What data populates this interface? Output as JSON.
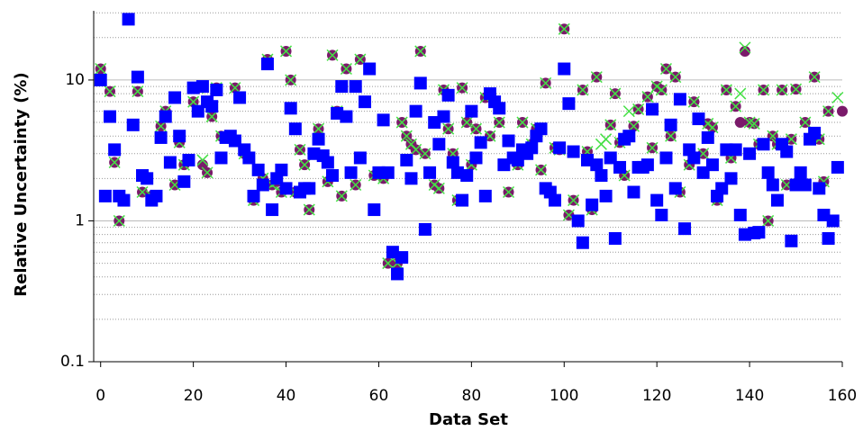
{
  "chart_data": {
    "type": "scatter",
    "x_label": "Data Set",
    "y_label": "Relative Uncertainty (%)",
    "xlim": [
      -1.5,
      160
    ],
    "xticks": [
      0,
      20,
      40,
      60,
      80,
      100,
      120,
      140,
      160
    ],
    "ylim": [
      0.1,
      31
    ],
    "yticks": [
      {
        "value": 0.1,
        "label": "0.1"
      },
      1,
      10
    ],
    "yticks_minor": [
      0.2,
      0.3,
      0.4,
      0.5,
      0.6,
      0.7,
      0.8,
      0.9,
      2,
      3,
      4,
      5,
      6,
      7,
      8,
      9,
      20,
      30
    ],
    "log_y": true,
    "grid": true,
    "x": [
      0,
      1,
      2,
      3,
      4,
      5,
      6,
      7,
      8,
      9,
      10,
      11,
      12,
      13,
      14,
      15,
      16,
      17,
      18,
      19,
      20,
      21,
      22,
      23,
      24,
      25,
      26,
      27,
      28,
      29,
      30,
      31,
      32,
      33,
      34,
      35,
      36,
      37,
      38,
      39,
      40,
      41,
      42,
      43,
      44,
      45,
      46,
      47,
      48,
      49,
      50,
      51,
      52,
      53,
      54,
      55,
      56,
      57,
      58,
      59,
      60,
      61,
      62,
      63,
      64,
      65,
      66,
      67,
      68,
      69,
      70,
      71,
      72,
      73,
      74,
      75,
      76,
      77,
      78,
      79,
      80,
      81,
      82,
      83,
      84,
      85,
      86,
      87,
      88,
      89,
      90,
      91,
      92,
      93,
      94,
      95,
      96,
      97,
      98,
      99,
      100,
      101,
      102,
      103,
      104,
      105,
      106,
      107,
      108,
      109,
      110,
      111,
      112,
      113,
      114,
      115,
      116,
      117,
      118,
      119,
      120,
      121,
      122,
      123,
      124,
      125,
      126,
      127,
      128,
      129,
      130,
      131,
      132,
      133,
      134,
      135,
      136,
      137,
      138,
      139,
      140,
      141,
      142,
      143,
      144,
      145,
      146,
      147,
      148,
      149,
      150,
      151,
      152,
      153,
      154,
      155,
      156,
      157,
      158,
      159,
      160
    ],
    "series": [
      {
        "marker": "x",
        "color": "#44e044",
        "values": [
          12,
          null,
          8.3,
          2.6,
          1,
          null,
          null,
          null,
          8.3,
          1.6,
          null,
          1.5,
          null,
          4.7,
          6,
          null,
          1.8,
          3.6,
          2.5,
          null,
          7,
          8.8,
          2.7,
          2.2,
          5.5,
          8.8,
          4,
          null,
          3.9,
          8.8,
          null,
          3,
          null,
          1.4,
          null,
          2,
          14,
          1.8,
          1.9,
          1.6,
          16,
          10,
          1.6,
          3.2,
          2.5,
          1.2,
          3,
          4.5,
          null,
          1.9,
          15,
          6,
          1.5,
          12,
          null,
          1.8,
          14,
          null,
          null,
          2.1,
          null,
          2,
          0.5,
          0.6,
          0.5,
          5,
          4,
          3.5,
          3.2,
          16,
          3,
          null,
          1.8,
          1.7,
          8.5,
          4.5,
          3,
          1.4,
          8.8,
          5,
          2.5,
          4.5,
          null,
          7.5,
          4,
          null,
          5,
          null,
          1.6,
          null,
          2.5,
          5,
          null,
          3.5,
          4.5,
          2.3,
          9.5,
          null,
          3.3,
          3.2,
          23,
          1.1,
          1.4,
          null,
          8.5,
          3.1,
          1.2,
          10.5,
          3.5,
          3.8,
          4.8,
          8,
          3.6,
          2.1,
          6,
          4.7,
          6.2,
          null,
          7.6,
          3.3,
          9,
          8.5,
          12,
          4,
          10.5,
          1.6,
          null,
          2.5,
          7,
          null,
          3,
          4.9,
          4.6,
          1.4,
          null,
          8.5,
          2.8,
          6.5,
          8,
          17,
          5,
          4.9,
          3.5,
          8.5,
          1,
          4,
          3.5,
          8.5,
          1.8,
          3.8,
          8.6,
          2,
          5,
          null,
          10.5,
          3.8,
          1.9,
          6,
          null,
          7.5,
          null
        ]
      },
      {
        "marker": "circle",
        "color": "#7a1a6a",
        "values": [
          12,
          null,
          8.3,
          2.6,
          1,
          null,
          null,
          null,
          8.3,
          1.6,
          null,
          1.5,
          null,
          4.7,
          6,
          null,
          1.8,
          3.6,
          2.5,
          null,
          7,
          8.8,
          2.5,
          2.2,
          5.5,
          8.8,
          4,
          null,
          3.9,
          8.8,
          null,
          3,
          null,
          1.4,
          null,
          2,
          14,
          1.8,
          1.9,
          1.6,
          16,
          10,
          1.6,
          3.2,
          2.5,
          1.2,
          3,
          4.5,
          null,
          1.9,
          15,
          6,
          1.5,
          12,
          null,
          1.8,
          14,
          null,
          null,
          2.1,
          null,
          2,
          0.5,
          0.6,
          0.5,
          5,
          4,
          3.5,
          3.2,
          16,
          3,
          null,
          1.8,
          1.7,
          8.5,
          4.5,
          3,
          1.4,
          8.8,
          5,
          2.5,
          4.5,
          null,
          7.5,
          4,
          null,
          5,
          null,
          1.6,
          null,
          2.5,
          5,
          null,
          3.5,
          4.5,
          2.3,
          9.5,
          null,
          3.3,
          3.2,
          23,
          1.1,
          1.4,
          null,
          8.5,
          3.1,
          1.2,
          10.5,
          null,
          null,
          4.8,
          8,
          3.6,
          2.1,
          null,
          4.7,
          6.2,
          null,
          7.6,
          3.3,
          9,
          8.5,
          12,
          4,
          10.5,
          1.6,
          null,
          2.5,
          7,
          null,
          3,
          4.9,
          4.6,
          1.4,
          null,
          8.5,
          2.8,
          6.5,
          5,
          16,
          5,
          4.9,
          3.5,
          8.5,
          1,
          4,
          3.5,
          8.5,
          1.8,
          3.8,
          8.6,
          2,
          5,
          null,
          10.5,
          3.8,
          1.9,
          6,
          null,
          null,
          6
        ]
      },
      {
        "marker": "square",
        "color": "#0000ff",
        "values": [
          10,
          1.5,
          5.5,
          3.2,
          1.5,
          1.4,
          27,
          4.8,
          10.5,
          2.1,
          2,
          1.4,
          1.5,
          3.9,
          5.5,
          2.6,
          7.5,
          4,
          1.9,
          2.7,
          8.8,
          6,
          9,
          7,
          6.5,
          8.5,
          2.8,
          3.9,
          4,
          3.7,
          7.5,
          3.2,
          2.8,
          1.5,
          2.3,
          1.8,
          13,
          1.2,
          2,
          2.3,
          1.7,
          6.3,
          4.5,
          1.6,
          1.7,
          1.7,
          3,
          3.8,
          2.9,
          2.6,
          2.1,
          5.8,
          9,
          5.5,
          2.2,
          9,
          2.8,
          7,
          12,
          1.2,
          2.2,
          5.2,
          2.2,
          0.6,
          0.42,
          0.55,
          2.7,
          2,
          6,
          9.5,
          0.87,
          2.2,
          5,
          3.5,
          5.5,
          7.8,
          2.6,
          2.2,
          1.4,
          2.1,
          6,
          2.8,
          3.6,
          1.5,
          8,
          7,
          6.3,
          2.5,
          3.7,
          2.8,
          2.7,
          3.2,
          3,
          3.3,
          4,
          4.5,
          1.7,
          1.6,
          1.4,
          3.3,
          12,
          6.8,
          3.1,
          1,
          0.7,
          2.7,
          1.3,
          2.5,
          2.1,
          1.5,
          2.8,
          0.75,
          2.4,
          3.8,
          4,
          1.6,
          2.4,
          2.4,
          2.5,
          6.2,
          1.4,
          1.1,
          2.8,
          4.8,
          1.7,
          7.3,
          0.88,
          3.2,
          2.8,
          5.3,
          2.2,
          3.9,
          2.5,
          1.5,
          1.7,
          3.2,
          2,
          3.2,
          1.1,
          0.8,
          3,
          0.82,
          0.83,
          3.5,
          2.2,
          1.8,
          1.4,
          3.5,
          3.1,
          0.72,
          1.8,
          2.2,
          1.8,
          3.8,
          4.2,
          1.7,
          1.1,
          0.75,
          1,
          2.4,
          null
        ]
      }
    ]
  }
}
